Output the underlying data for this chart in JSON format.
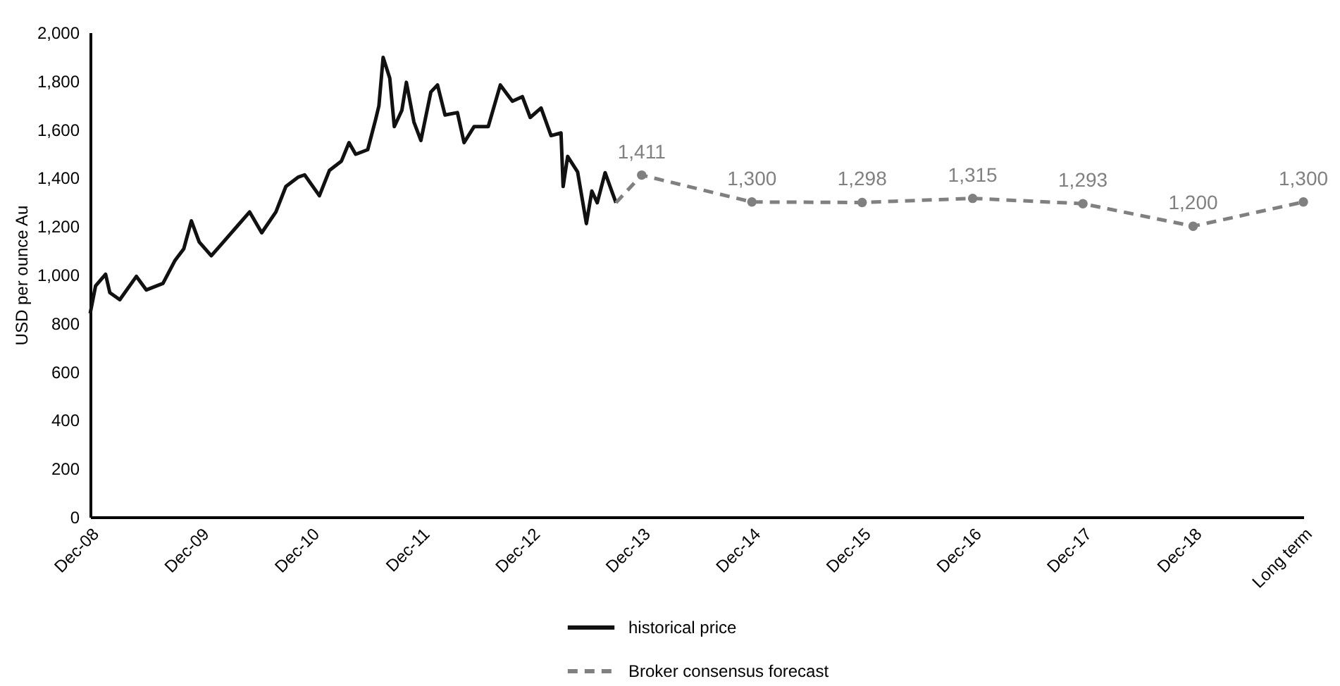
{
  "chart_data": {
    "type": "line",
    "ylabel": "USD per ounce Au",
    "xlim": [
      "2008-12-01",
      "2019-12-01"
    ],
    "xticks": [
      {
        "value": "2008-12-01",
        "label": "Dec-08"
      },
      {
        "value": "2009-12-01",
        "label": "Dec-09"
      },
      {
        "value": "2010-12-01",
        "label": "Dec-10"
      },
      {
        "value": "2011-12-01",
        "label": "Dec-11"
      },
      {
        "value": "2012-12-01",
        "label": "Dec-12"
      },
      {
        "value": "2013-12-01",
        "label": "Dec-13"
      },
      {
        "value": "2014-12-01",
        "label": "Dec-14"
      },
      {
        "value": "2015-12-01",
        "label": "Dec-15"
      },
      {
        "value": "2016-12-01",
        "label": "Dec-16"
      },
      {
        "value": "2017-12-01",
        "label": "Dec-17"
      },
      {
        "value": "2018-12-01",
        "label": "Dec-18"
      },
      {
        "value": "2019-12-01",
        "label": "Long term"
      }
    ],
    "ylim": [
      0,
      2000
    ],
    "yticks": [
      0,
      200,
      400,
      600,
      800,
      {
        "value": 1000,
        "label": "1,000"
      },
      {
        "value": 1200,
        "label": "1,200"
      },
      {
        "value": 1400,
        "label": "1,400"
      },
      {
        "value": 1600,
        "label": "1,600"
      },
      {
        "value": 1800,
        "label": "1,800"
      },
      {
        "value": 2000,
        "label": "2,000"
      }
    ],
    "grid": false,
    "legend": "bottom",
    "series": [
      {
        "name": "historical price",
        "color": "#111111",
        "line_style": "solid",
        "marker": "none",
        "x": [
          "2008-12-01",
          "2008-12-19",
          "2009-01-21",
          "2009-02-04",
          "2009-03-09",
          "2009-05-03",
          "2009-06-05",
          "2009-07-30",
          "2009-09-08",
          "2009-10-07",
          "2009-11-01",
          "2009-11-27",
          "2010-01-06",
          "2010-02-15",
          "2010-04-03",
          "2010-05-13",
          "2010-06-22",
          "2010-08-08",
          "2010-09-10",
          "2010-10-20",
          "2010-11-11",
          "2010-12-30",
          "2011-02-01",
          "2011-03-13",
          "2011-04-07",
          "2011-04-29",
          "2011-06-08",
          "2011-07-04",
          "2011-07-15",
          "2011-07-29",
          "2011-08-20",
          "2011-09-04",
          "2011-09-29",
          "2011-10-14",
          "2011-11-08",
          "2011-12-01",
          "2012-01-03",
          "2012-01-25",
          "2012-02-19",
          "2012-03-31",
          "2012-04-22",
          "2012-05-25",
          "2012-07-11",
          "2012-08-20",
          "2012-09-29",
          "2012-11-01",
          "2012-11-27",
          "2013-01-02",
          "2013-02-04",
          "2013-03-09",
          "2013-03-16",
          "2013-03-31",
          "2013-05-03",
          "2013-06-01",
          "2013-06-19",
          "2013-07-07",
          "2013-08-02",
          "2013-08-24",
          "2013-09-07"
        ],
        "values": [
          840,
          954,
          1002,
          926,
          897,
          993,
          937,
          964,
          1059,
          1107,
          1222,
          1135,
          1078,
          1135,
          1202,
          1259,
          1173,
          1259,
          1364,
          1402,
          1412,
          1326,
          1430,
          1469,
          1545,
          1497,
          1516,
          1640,
          1697,
          1897,
          1811,
          1611,
          1678,
          1794,
          1630,
          1554,
          1754,
          1783,
          1659,
          1669,
          1545,
          1611,
          1611,
          1783,
          1716,
          1735,
          1649,
          1688,
          1574,
          1585,
          1364,
          1488,
          1424,
          1211,
          1345,
          1297,
          1421,
          1345,
          1297
        ]
      },
      {
        "name": "Broker consensus forecast",
        "color": "#808080",
        "line_style": "dashed",
        "marker": "circle",
        "x": [
          "2013-09-07",
          "2013-12-01",
          "2014-12-01",
          "2015-12-01",
          "2016-12-01",
          "2017-12-01",
          "2018-12-01",
          "2019-12-01"
        ],
        "values": [
          1297,
          1411,
          1300,
          1298,
          1315,
          1293,
          1200,
          1300
        ],
        "value_labels": [
          null,
          "1,411",
          "1,300",
          "1,298",
          "1,315",
          "1,293",
          "1,200",
          "1,300"
        ]
      }
    ]
  }
}
